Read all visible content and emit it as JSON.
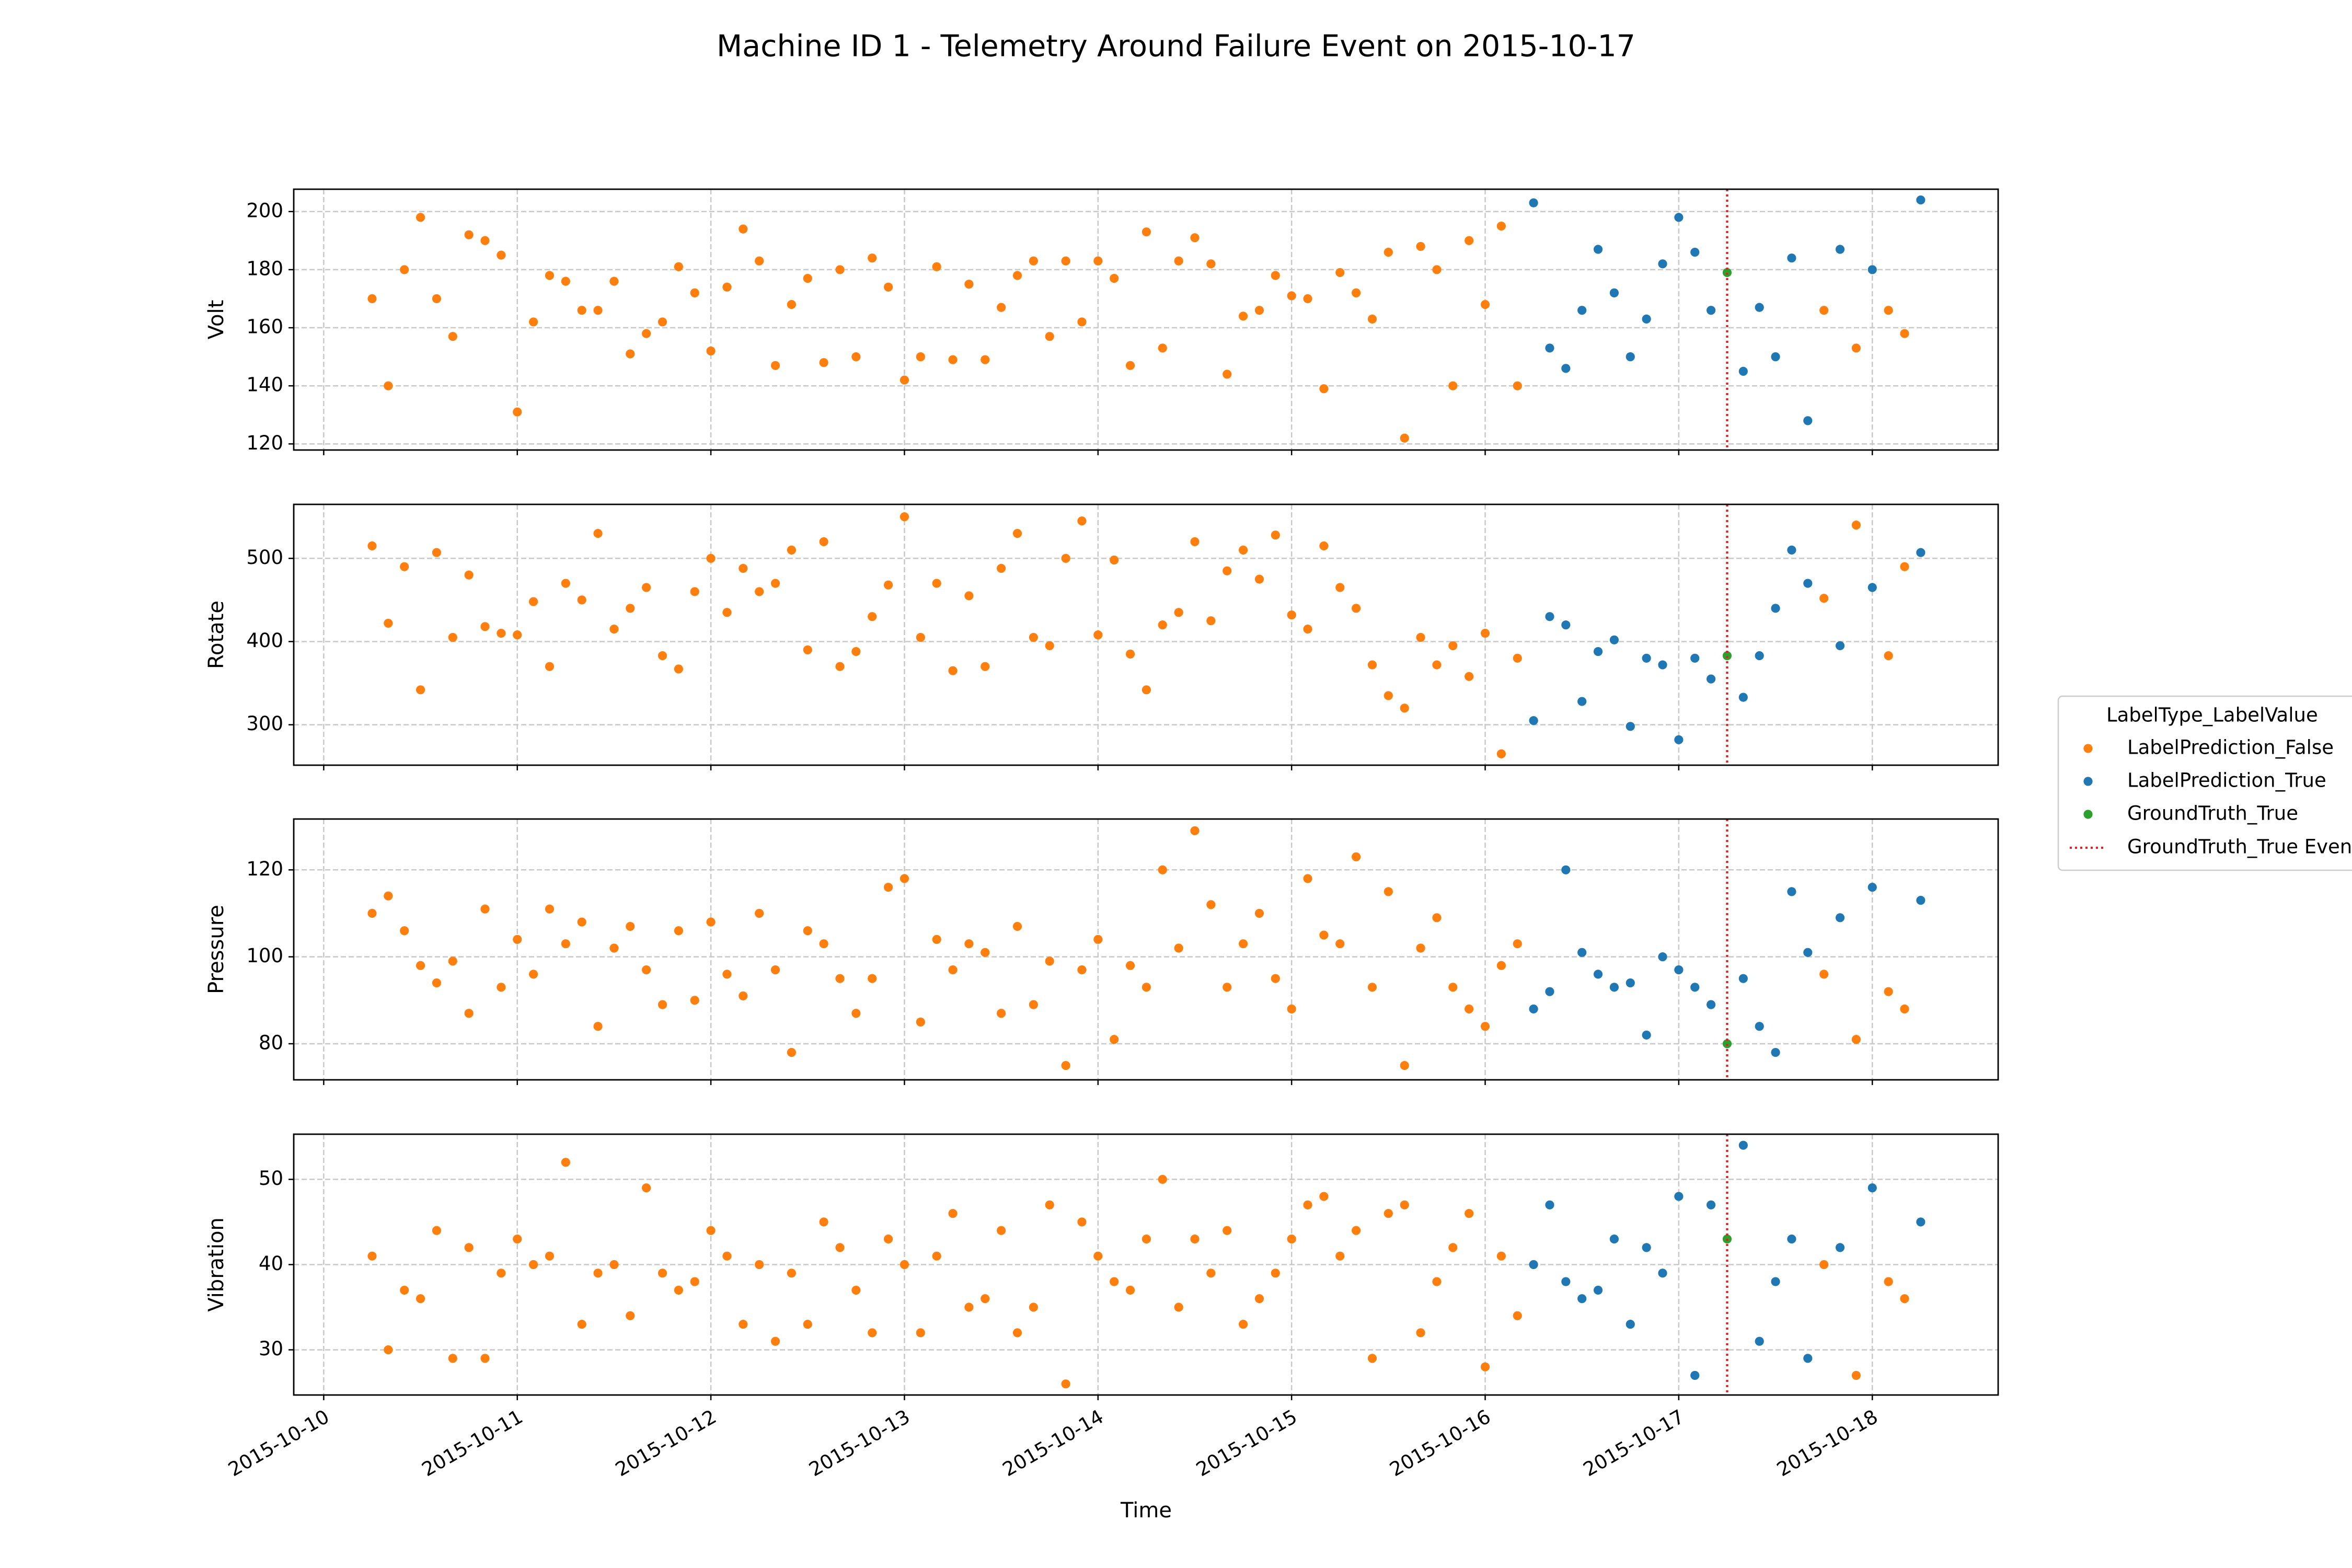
{
  "chart_data": {
    "type": "scatter",
    "title": "Machine ID 1 - Telemetry Around Failure Event on 2015-10-17",
    "xlabel": "Time",
    "xlim": [
      "2015-10-09 20:17",
      "2015-10-18 15:36"
    ],
    "xticks": [
      "2015-10-10",
      "2015-10-11",
      "2015-10-12",
      "2015-10-13",
      "2015-10-14",
      "2015-10-15",
      "2015-10-16",
      "2015-10-17",
      "2015-10-18"
    ],
    "grid": true,
    "legend": {
      "title": "LabelType_LabelValue",
      "position": "right"
    },
    "panels": [
      {
        "ylabel": "Volt",
        "ylim": [
          117.9,
          207.7
        ],
        "yticks": [
          120,
          140,
          160,
          180,
          200
        ]
      },
      {
        "ylabel": "Rotate",
        "ylim": [
          251.4,
          564.9
        ],
        "yticks": [
          300,
          400,
          500
        ]
      },
      {
        "ylabel": "Pressure",
        "ylim": [
          71.7,
          131.7
        ],
        "yticks": [
          80,
          100,
          120
        ]
      },
      {
        "ylabel": "Vibration",
        "ylim": [
          24.7,
          55.3
        ],
        "yticks": [
          30,
          40,
          50
        ]
      }
    ],
    "series": [
      {
        "name": "LabelPrediction_False",
        "color": "#ff7f0e",
        "x": [
          "2015-10-10 06:00",
          "2015-10-10 08:00",
          "2015-10-10 10:00",
          "2015-10-10 12:00",
          "2015-10-10 14:00",
          "2015-10-10 16:00",
          "2015-10-10 18:00",
          "2015-10-10 20:00",
          "2015-10-10 22:00",
          "2015-10-11 00:00",
          "2015-10-11 02:00",
          "2015-10-11 04:00",
          "2015-10-11 06:00",
          "2015-10-11 08:00",
          "2015-10-11 10:00",
          "2015-10-11 12:00",
          "2015-10-11 14:00",
          "2015-10-11 16:00",
          "2015-10-11 18:00",
          "2015-10-11 20:00",
          "2015-10-11 22:00",
          "2015-10-12 00:00",
          "2015-10-12 02:00",
          "2015-10-12 04:00",
          "2015-10-12 06:00",
          "2015-10-12 08:00",
          "2015-10-12 10:00",
          "2015-10-12 12:00",
          "2015-10-12 14:00",
          "2015-10-12 16:00",
          "2015-10-12 18:00",
          "2015-10-12 20:00",
          "2015-10-12 22:00",
          "2015-10-13 00:00",
          "2015-10-13 02:00",
          "2015-10-13 04:00",
          "2015-10-13 06:00",
          "2015-10-13 08:00",
          "2015-10-13 10:00",
          "2015-10-13 12:00",
          "2015-10-13 14:00",
          "2015-10-13 16:00",
          "2015-10-13 18:00",
          "2015-10-13 20:00",
          "2015-10-13 22:00",
          "2015-10-14 00:00",
          "2015-10-14 02:00",
          "2015-10-14 04:00",
          "2015-10-14 06:00",
          "2015-10-14 08:00",
          "2015-10-14 10:00",
          "2015-10-14 12:00",
          "2015-10-14 14:00",
          "2015-10-14 16:00",
          "2015-10-14 18:00",
          "2015-10-14 20:00",
          "2015-10-14 22:00",
          "2015-10-15 00:00",
          "2015-10-15 02:00",
          "2015-10-15 04:00",
          "2015-10-15 06:00",
          "2015-10-15 08:00",
          "2015-10-15 10:00",
          "2015-10-15 12:00",
          "2015-10-15 14:00",
          "2015-10-15 16:00",
          "2015-10-15 18:00",
          "2015-10-15 20:00",
          "2015-10-15 22:00",
          "2015-10-16 00:00",
          "2015-10-16 02:00",
          "2015-10-16 04:00",
          "2015-10-17 18:00",
          "2015-10-17 22:00",
          "2015-10-18 02:00",
          "2015-10-18 04:00"
        ],
        "values": [
          [
            170,
            140,
            180,
            198,
            170,
            157,
            192,
            190,
            185,
            131,
            162,
            178,
            176,
            166,
            166,
            176,
            151,
            158,
            162,
            181,
            172,
            152,
            174,
            194,
            183,
            147,
            168,
            177,
            148,
            180,
            150,
            184,
            174,
            142,
            150,
            181,
            149,
            175,
            149,
            167,
            178,
            183,
            157,
            183,
            162,
            183,
            177,
            147,
            193,
            153,
            183,
            191,
            182,
            144,
            164,
            166,
            178,
            171,
            170,
            139,
            179,
            172,
            163,
            186,
            122,
            188,
            180,
            140,
            190,
            168,
            195,
            140,
            166,
            153,
            166,
            158
          ],
          [
            515,
            422,
            490,
            342,
            507,
            405,
            480,
            418,
            410,
            408,
            448,
            370,
            470,
            450,
            530,
            415,
            440,
            465,
            383,
            367,
            460,
            500,
            435,
            488,
            460,
            470,
            510,
            390,
            520,
            370,
            388,
            430,
            468,
            550,
            405,
            470,
            365,
            455,
            370,
            488,
            530,
            405,
            395,
            500,
            545,
            408,
            498,
            385,
            342,
            420,
            435,
            520,
            425,
            485,
            510,
            475,
            528,
            432,
            415,
            515,
            465,
            440,
            372,
            335,
            320,
            405,
            372,
            395,
            358,
            410,
            265,
            380,
            452,
            540,
            383,
            490
          ],
          [
            110,
            114,
            106,
            98,
            94,
            99,
            87,
            111,
            93,
            104,
            96,
            111,
            103,
            108,
            84,
            102,
            107,
            97,
            89,
            106,
            90,
            108,
            96,
            91,
            110,
            97,
            78,
            106,
            103,
            95,
            87,
            95,
            116,
            118,
            85,
            104,
            97,
            103,
            101,
            87,
            107,
            89,
            99,
            75,
            97,
            104,
            81,
            98,
            93,
            120,
            102,
            129,
            112,
            93,
            103,
            110,
            95,
            88,
            118,
            105,
            103,
            123,
            93,
            115,
            75,
            102,
            109,
            93,
            88,
            84,
            98,
            103,
            96,
            81,
            92,
            88
          ],
          [
            41,
            30,
            37,
            36,
            44,
            29,
            42,
            29,
            39,
            43,
            40,
            41,
            52,
            33,
            39,
            40,
            34,
            49,
            39,
            37,
            38,
            44,
            41,
            33,
            40,
            31,
            39,
            33,
            45,
            42,
            37,
            32,
            43,
            40,
            32,
            41,
            46,
            35,
            36,
            44,
            32,
            35,
            47,
            26,
            45,
            41,
            38,
            37,
            43,
            50,
            35,
            43,
            39,
            44,
            33,
            36,
            39,
            43,
            47,
            48,
            41,
            44,
            29,
            46,
            47,
            32,
            38,
            42,
            46,
            28,
            41,
            34,
            40,
            27,
            38,
            36
          ]
        ]
      },
      {
        "name": "LabelPrediction_True",
        "color": "#1f77b4",
        "x": [
          "2015-10-16 06:00",
          "2015-10-16 08:00",
          "2015-10-16 10:00",
          "2015-10-16 12:00",
          "2015-10-16 14:00",
          "2015-10-16 16:00",
          "2015-10-16 18:00",
          "2015-10-16 20:00",
          "2015-10-16 22:00",
          "2015-10-17 00:00",
          "2015-10-17 02:00",
          "2015-10-17 04:00",
          "2015-10-17 08:00",
          "2015-10-17 10:00",
          "2015-10-17 12:00",
          "2015-10-17 14:00",
          "2015-10-17 16:00",
          "2015-10-17 20:00",
          "2015-10-18 00:00",
          "2015-10-18 06:00"
        ],
        "values": [
          [
            203,
            153,
            146,
            166,
            187,
            172,
            150,
            163,
            182,
            198,
            186,
            166,
            145,
            167,
            150,
            184,
            128,
            187,
            180,
            204
          ],
          [
            305,
            430,
            420,
            328,
            388,
            402,
            298,
            380,
            372,
            282,
            380,
            355,
            333,
            383,
            440,
            510,
            470,
            395,
            465,
            507
          ],
          [
            88,
            92,
            120,
            101,
            96,
            93,
            94,
            82,
            100,
            97,
            93,
            89,
            95,
            84,
            78,
            115,
            101,
            109,
            116,
            113
          ],
          [
            40,
            47,
            38,
            36,
            37,
            43,
            33,
            42,
            39,
            48,
            27,
            47,
            54,
            31,
            38,
            43,
            29,
            42,
            49,
            45
          ]
        ]
      },
      {
        "name": "GroundTruth_True",
        "color": "#2ca02c",
        "x": [
          "2015-10-17 06:00"
        ],
        "values": [
          [
            179
          ],
          [
            383
          ],
          [
            80
          ],
          [
            43
          ]
        ]
      }
    ],
    "event": {
      "name": "GroundTruth_True Event",
      "x": "2015-10-17 06:00",
      "color": "#d62728"
    }
  }
}
